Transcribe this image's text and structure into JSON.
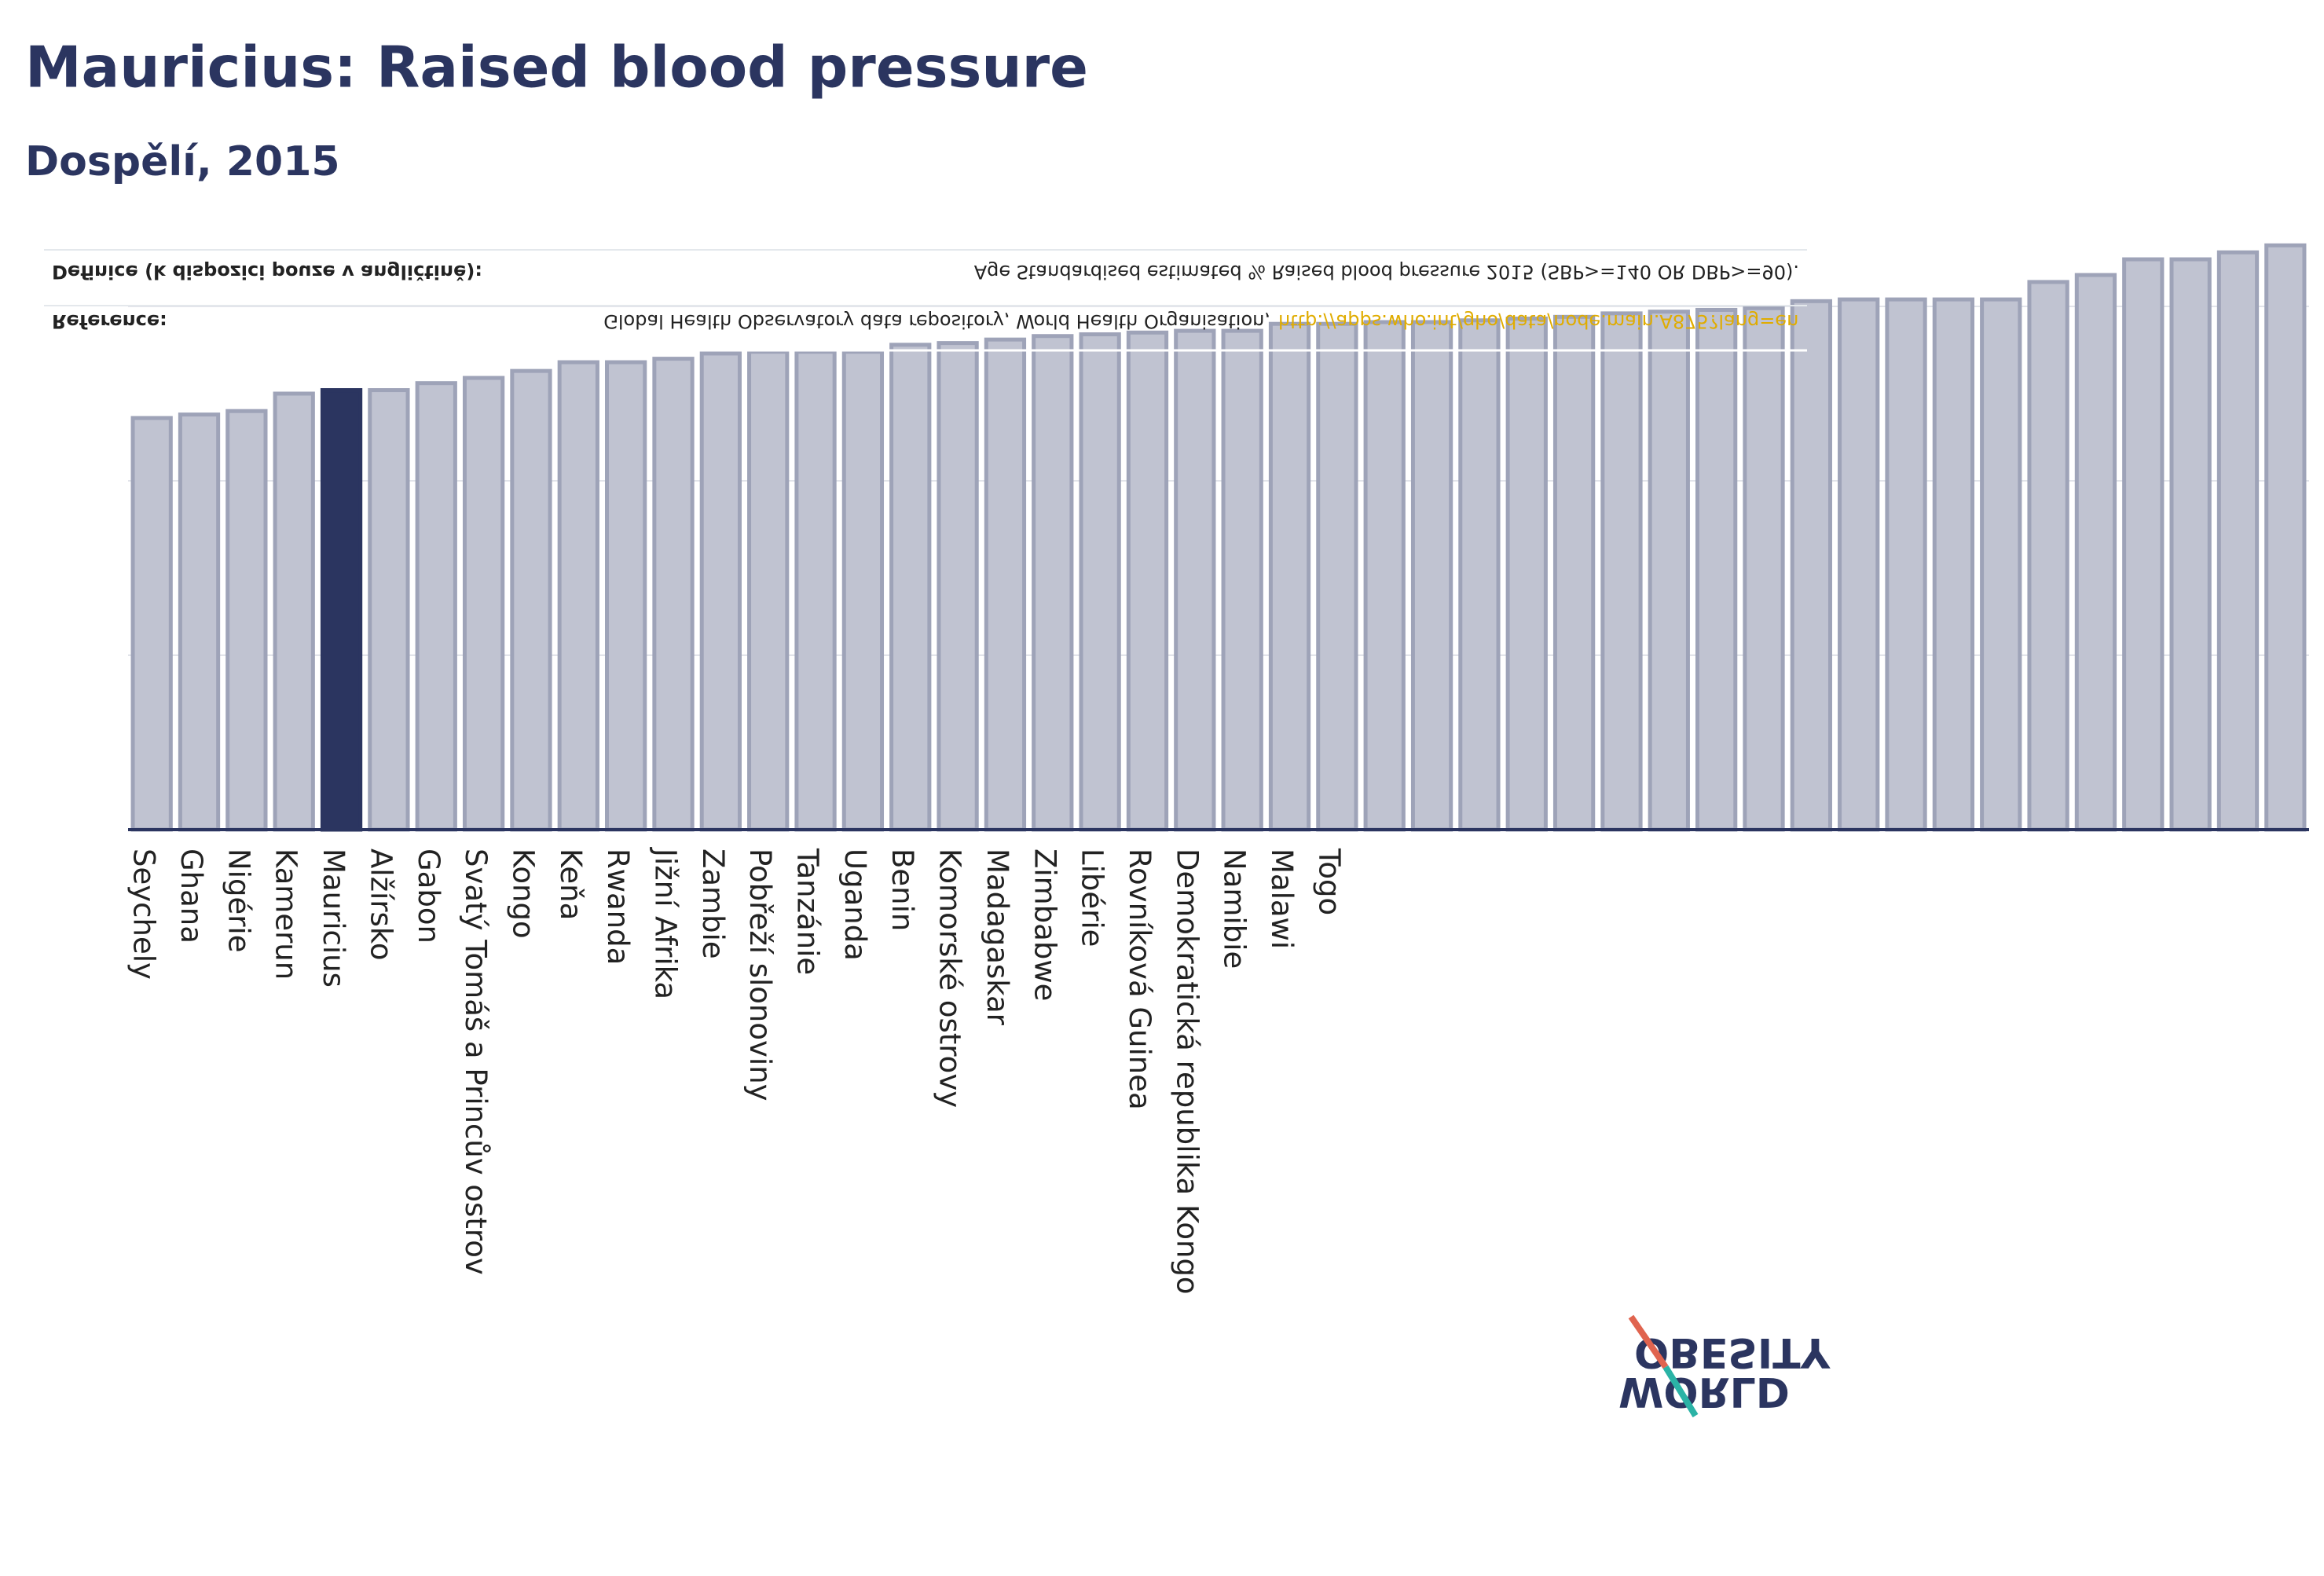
{
  "chart_data": {
    "type": "bar",
    "title": "Mauricius: Raised blood pressure",
    "subtitle": "Dospělí, 2015",
    "categories": [
      "Seychely",
      "Ghana",
      "Nigérie",
      "Kamerun",
      "Mauricius",
      "Alžírsko",
      "Gabon",
      "Svatý Tomáš a Princův ostrov",
      "Kongo",
      "Keňa",
      "Rwanda",
      "Jižní Afrika",
      "Zambie",
      "Pobřeží slonoviny",
      "Tanzánie",
      "Uganda",
      "Benin",
      "Komorské ostrovy",
      "Madagaskar",
      "Zimbabwe",
      "Libérie",
      "Rovníková Guinea",
      "Demokratická republika Kongo",
      "Namibie",
      "Malawi",
      "Togo",
      null,
      null,
      null,
      null,
      null,
      null,
      null,
      null,
      null,
      null,
      null,
      null,
      null,
      null,
      null,
      null,
      null,
      null,
      null,
      null
    ],
    "values": [
      23.6,
      23.8,
      24.0,
      25.0,
      25.2,
      25.2,
      25.6,
      25.9,
      26.3,
      26.8,
      26.8,
      27.0,
      27.3,
      27.4,
      27.4,
      27.4,
      27.8,
      27.9,
      28.1,
      28.3,
      28.4,
      28.5,
      28.6,
      28.6,
      29.0,
      29.0,
      29.1,
      29.1,
      29.2,
      29.3,
      29.4,
      29.6,
      29.7,
      29.8,
      29.9,
      30.3,
      30.4,
      30.4,
      30.4,
      30.4,
      31.4,
      31.8,
      32.7,
      32.7,
      33.1,
      33.5
    ],
    "color": "#c0c3d1",
    "edge_color": "#9ea3b8",
    "highlight": "Mauricius",
    "highlight_color": "#2b3560",
    "ylim": [
      0,
      40
    ],
    "gridlines": [
      10,
      20,
      30
    ],
    "grid": true,
    "definition_label": "Definice (k dispozici pouze v angličtině):",
    "definition": "Age Standardised estimated % Raised blood pressure 2015 (SBP>=140 OR DBP>=90).",
    "reference_label": "Reference:",
    "reference": "Global Health Observatory data repository, World Health Organisation,",
    "reference_link": "http://apps.who.int/gho/data/node.main.A875?lang=en",
    "logo_top": "OBESITY",
    "logo_bottom": "WORLD"
  }
}
